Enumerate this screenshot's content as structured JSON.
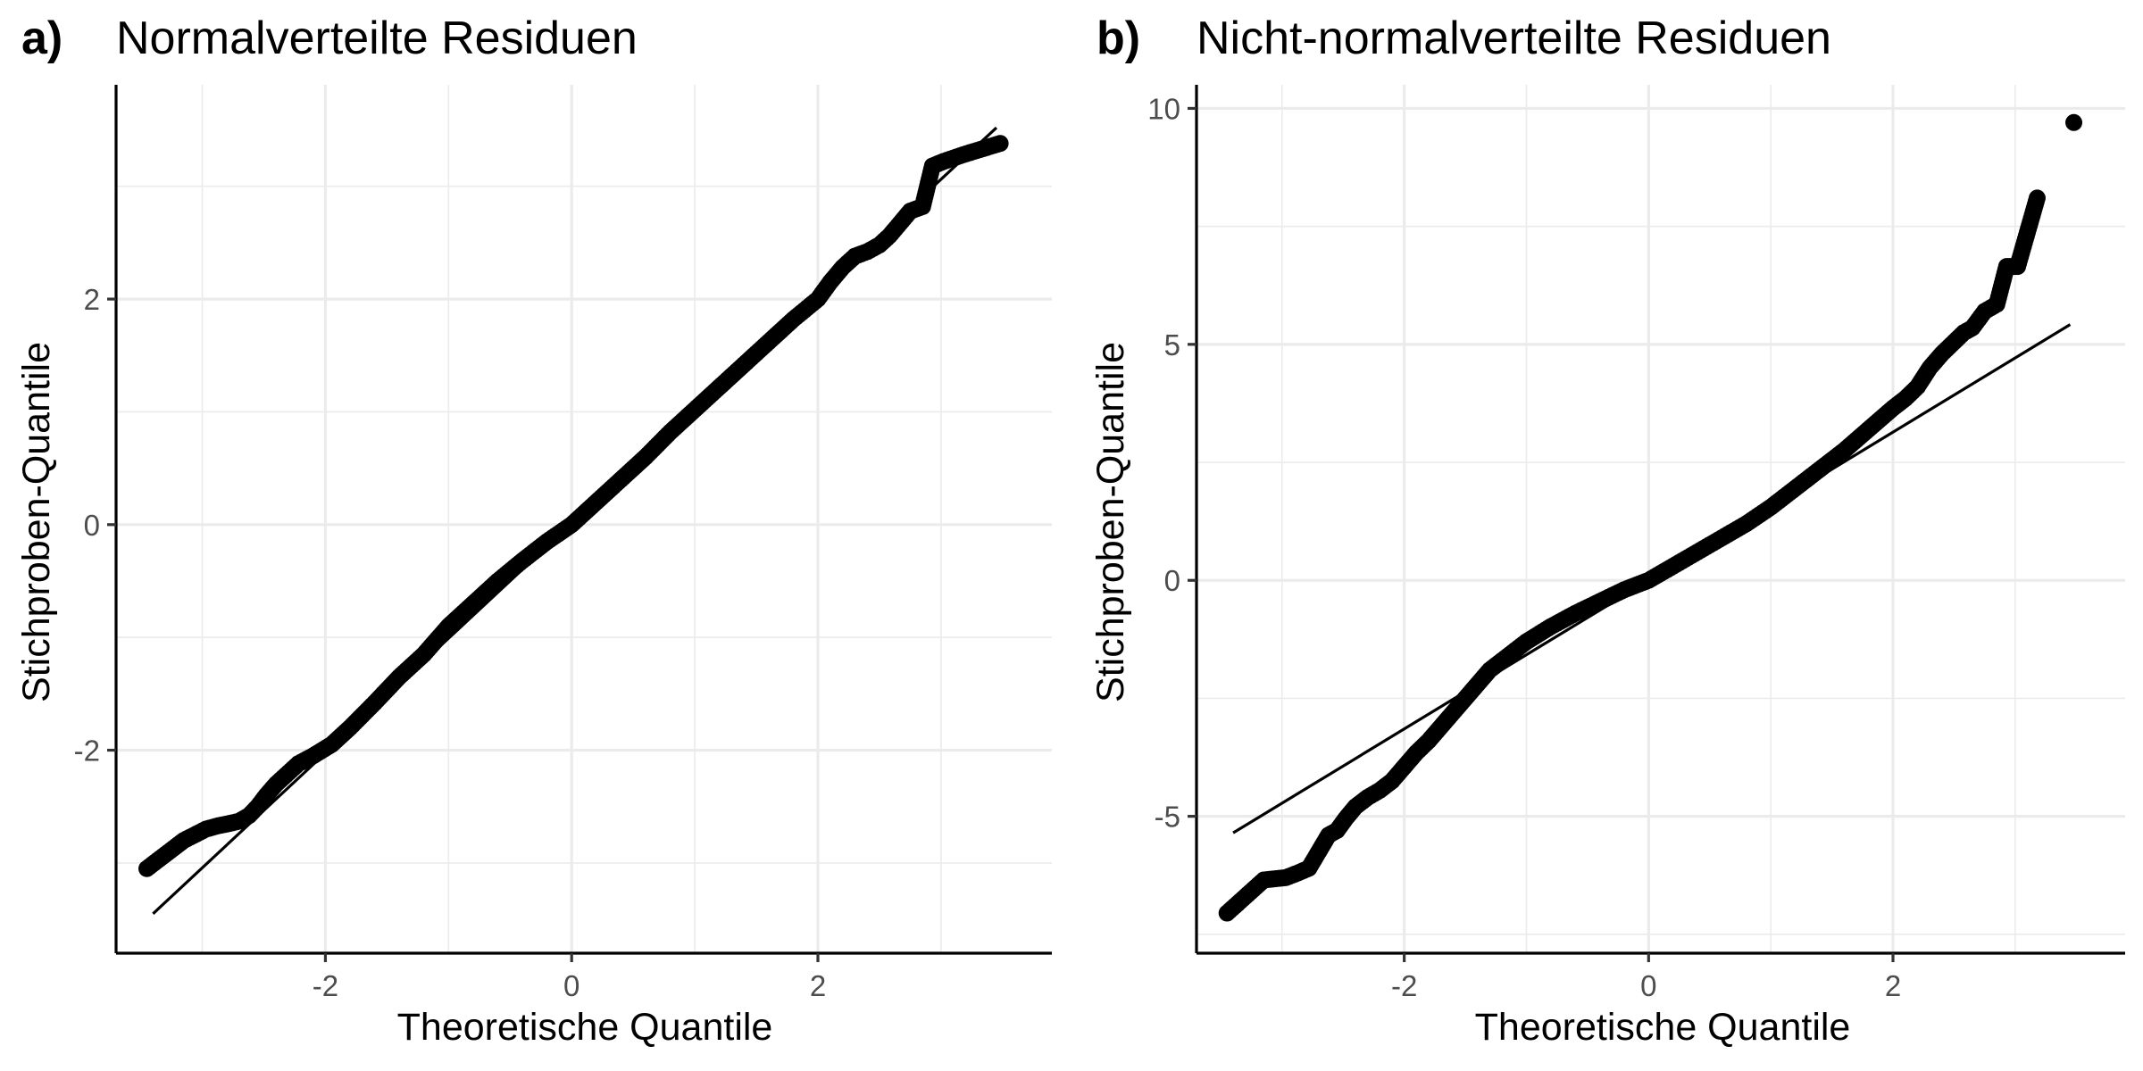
{
  "chart_data": [
    {
      "type": "scatter",
      "tag": "a)",
      "title": "Normalverteilte Residuen",
      "xlabel": "Theoretische Quantile",
      "ylabel": "Stichproben-Quantile",
      "xlim": [
        -3.7,
        3.9
      ],
      "ylim": [
        -3.8,
        3.9
      ],
      "xticks": [
        -2,
        0,
        2
      ],
      "xtick_labels": [
        "-2",
        "0",
        "2"
      ],
      "yticks": [
        -2,
        0,
        2
      ],
      "ytick_labels": [
        "-2",
        "0",
        "2"
      ],
      "grid": true,
      "reference_line": {
        "x": [
          -3.4,
          3.45
        ],
        "y": [
          -3.45,
          3.52
        ]
      },
      "series": [
        {
          "x": [
            -3.45,
            -3.15,
            -2.97,
            -2.87,
            -2.78,
            -2.7,
            -2.62,
            -2.55,
            -2.48,
            -2.4,
            -2.32,
            -2.22,
            -2.1,
            -1.95,
            -1.8,
            -1.6,
            -1.4,
            -1.2,
            -1.0,
            -0.8,
            -0.6,
            -0.4,
            -0.2,
            0.0,
            0.2,
            0.4,
            0.6,
            0.8,
            1.0,
            1.2,
            1.4,
            1.6,
            1.8,
            2.0,
            2.1,
            2.2,
            2.3,
            2.4,
            2.5,
            2.58,
            2.65,
            2.75,
            2.85,
            2.93,
            3.02,
            3.18,
            3.48
          ],
          "y": [
            -3.05,
            -2.8,
            -2.7,
            -2.67,
            -2.65,
            -2.63,
            -2.58,
            -2.5,
            -2.4,
            -2.3,
            -2.22,
            -2.12,
            -2.05,
            -1.95,
            -1.8,
            -1.58,
            -1.35,
            -1.15,
            -0.9,
            -0.7,
            -0.5,
            -0.32,
            -0.15,
            0.0,
            0.2,
            0.4,
            0.6,
            0.82,
            1.02,
            1.22,
            1.42,
            1.62,
            1.82,
            2.0,
            2.15,
            2.28,
            2.38,
            2.42,
            2.48,
            2.56,
            2.65,
            2.78,
            2.82,
            3.18,
            3.22,
            3.28,
            3.38
          ]
        }
      ]
    },
    {
      "type": "scatter",
      "tag": "b)",
      "title": "Nicht-normalverteilte Residuen",
      "xlabel": "Theoretische Quantile",
      "ylabel": "Stichproben-Quantile",
      "xlim": [
        -3.7,
        3.9
      ],
      "ylim": [
        -7.9,
        10.5
      ],
      "xticks": [
        -2,
        0,
        2
      ],
      "xtick_labels": [
        "-2",
        "0",
        "2"
      ],
      "yticks": [
        -5,
        0,
        5,
        10
      ],
      "ytick_labels": [
        "-5",
        "0",
        "5",
        "10"
      ],
      "grid": true,
      "reference_line": {
        "x": [
          -3.4,
          3.45
        ],
        "y": [
          -5.35,
          5.42
        ]
      },
      "series": [
        {
          "x": [
            -3.45,
            -3.15,
            -2.97,
            -2.87,
            -2.78,
            -2.7,
            -2.62,
            -2.55,
            -2.48,
            -2.4,
            -2.3,
            -2.2,
            -2.1,
            -2.0,
            -1.9,
            -1.8,
            -1.7,
            -1.6,
            -1.5,
            -1.4,
            -1.3,
            -1.2,
            -1.0,
            -0.8,
            -0.6,
            -0.4,
            -0.2,
            0.0,
            0.2,
            0.4,
            0.6,
            0.8,
            1.0,
            1.2,
            1.4,
            1.6,
            1.8,
            2.0,
            2.1,
            2.2,
            2.3,
            2.4,
            2.5,
            2.58,
            2.65,
            2.75,
            2.85,
            2.93,
            3.02,
            3.18,
            3.48
          ],
          "y": [
            -7.05,
            -6.35,
            -6.3,
            -6.2,
            -6.1,
            -5.75,
            -5.4,
            -5.3,
            -5.05,
            -4.8,
            -4.6,
            -4.45,
            -4.25,
            -3.95,
            -3.65,
            -3.4,
            -3.1,
            -2.8,
            -2.5,
            -2.2,
            -1.9,
            -1.7,
            -1.3,
            -0.98,
            -0.7,
            -0.45,
            -0.2,
            0.0,
            0.3,
            0.6,
            0.9,
            1.2,
            1.55,
            1.95,
            2.35,
            2.75,
            3.2,
            3.65,
            3.85,
            4.1,
            4.5,
            4.8,
            5.05,
            5.25,
            5.35,
            5.7,
            5.85,
            6.65,
            6.65,
            8.1,
            9.7
          ]
        }
      ]
    }
  ]
}
